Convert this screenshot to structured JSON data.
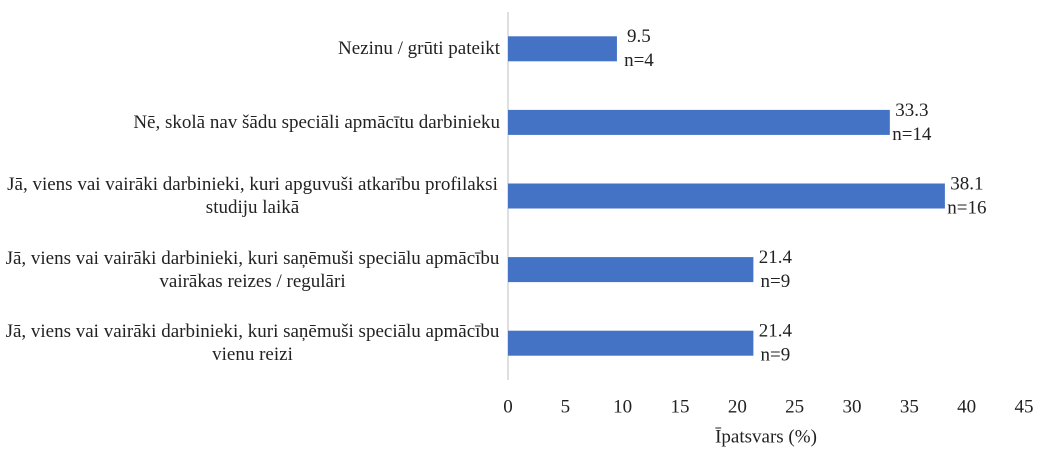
{
  "chart_data": {
    "type": "bar",
    "orientation": "horizontal",
    "categories": [
      "Nezinu / grūti pateikt",
      "Nē, skolā nav šādu speciāli apmācītu darbinieku",
      "Jā, viens vai vairāki darbinieki, kuri apguvuši atkarību profilaksi studiju laikā",
      "Jā, viens vai vairāki darbinieki, kuri saņēmuši speciālu apmācību vairākas reizes / regulāri",
      "Jā, viens vai vairāki darbinieki, kuri saņēmuši speciālu apmācību vienu reizi"
    ],
    "values": [
      9.5,
      33.3,
      38.1,
      21.4,
      21.4
    ],
    "n_labels": [
      "n=4",
      "n=14",
      "n=16",
      "n=9",
      "n=9"
    ],
    "color": "#4472c4",
    "xlabel": "Īpatsvars (%)",
    "xlim": [
      0,
      45
    ],
    "xticks": [
      0,
      5,
      10,
      15,
      20,
      25,
      30,
      35,
      40,
      45
    ],
    "grid": false
  }
}
